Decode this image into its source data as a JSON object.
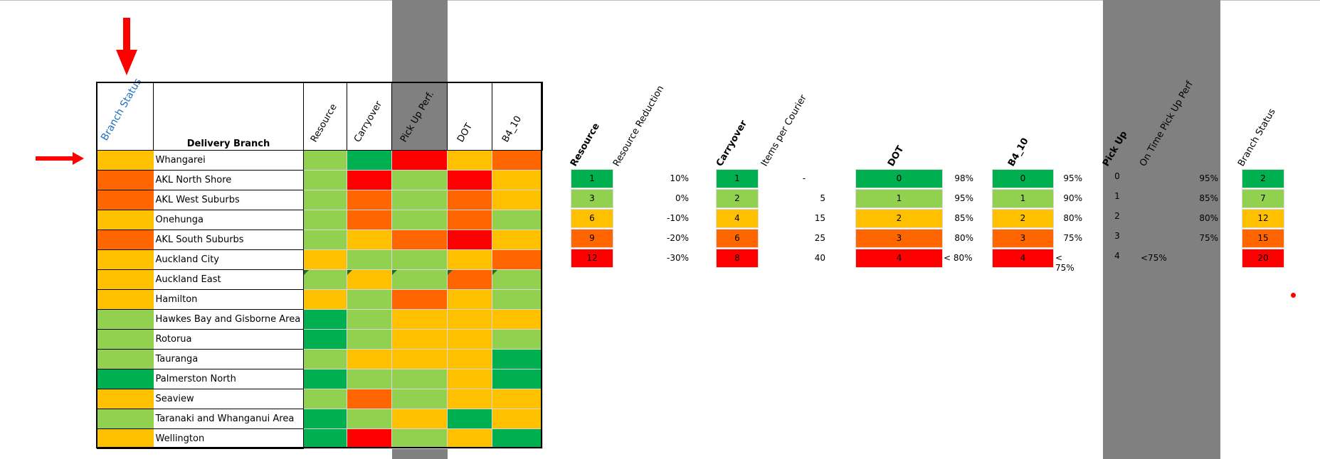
{
  "colors": {
    "dark_green": "#00b050",
    "light_green": "#92d050",
    "amber": "#ffc000",
    "orange": "#ff6600",
    "red": "#ff0000",
    "band_gray": "#808080",
    "link_blue": "#1f6fc4"
  },
  "main_table": {
    "headers": {
      "branch_status": "Branch Status",
      "delivery_branch": "Delivery Branch",
      "resource": "Resource",
      "carryover": "Carryover",
      "pickup": "Pick Up Perf.",
      "dot": "DOT",
      "b4_10": "B4_10"
    },
    "rows": [
      {
        "name": "Whangarei",
        "status": "amber",
        "resource": "light_green",
        "carryover": "dark_green",
        "pickup": "red",
        "dot": "amber",
        "b4": "orange"
      },
      {
        "name": "AKL North Shore",
        "status": "orange",
        "resource": "light_green",
        "carryover": "red",
        "pickup": "light_green",
        "dot": "red",
        "b4": "amber"
      },
      {
        "name": "AKL West Suburbs",
        "status": "orange",
        "resource": "light_green",
        "carryover": "orange",
        "pickup": "light_green",
        "dot": "orange",
        "b4": "amber"
      },
      {
        "name": "Onehunga",
        "status": "amber",
        "resource": "light_green",
        "carryover": "orange",
        "pickup": "light_green",
        "dot": "orange",
        "b4": "light_green"
      },
      {
        "name": "AKL South Suburbs",
        "status": "orange",
        "resource": "light_green",
        "carryover": "amber",
        "pickup": "orange",
        "dot": "red",
        "b4": "amber"
      },
      {
        "name": "Auckland City",
        "status": "amber",
        "resource": "amber",
        "carryover": "light_green",
        "pickup": "light_green",
        "dot": "amber",
        "b4": "orange"
      },
      {
        "name": "Auckland East",
        "status": "amber",
        "resource": "light_green",
        "carryover": "amber",
        "pickup": "light_green",
        "dot": "orange",
        "b4": "light_green"
      },
      {
        "name": "Hamilton",
        "status": "amber",
        "resource": "amber",
        "carryover": "light_green",
        "pickup": "orange",
        "dot": "amber",
        "b4": "light_green"
      },
      {
        "name": "Hawkes Bay and Gisborne Area",
        "status": "light_green",
        "resource": "dark_green",
        "carryover": "light_green",
        "pickup": "amber",
        "dot": "amber",
        "b4": "amber"
      },
      {
        "name": "Rotorua",
        "status": "light_green",
        "resource": "dark_green",
        "carryover": "light_green",
        "pickup": "amber",
        "dot": "amber",
        "b4": "light_green"
      },
      {
        "name": "Tauranga",
        "status": "light_green",
        "resource": "light_green",
        "carryover": "amber",
        "pickup": "amber",
        "dot": "amber",
        "b4": "dark_green"
      },
      {
        "name": "Palmerston North",
        "status": "dark_green",
        "resource": "dark_green",
        "carryover": "light_green",
        "pickup": "light_green",
        "dot": "amber",
        "b4": "dark_green"
      },
      {
        "name": "Seaview",
        "status": "amber",
        "resource": "light_green",
        "carryover": "orange",
        "pickup": "light_green",
        "dot": "amber",
        "b4": "amber"
      },
      {
        "name": "Taranaki and Whanganui Area",
        "status": "light_green",
        "resource": "dark_green",
        "carryover": "light_green",
        "pickup": "amber",
        "dot": "dark_green",
        "b4": "amber"
      },
      {
        "name": "Wellington",
        "status": "amber",
        "resource": "dark_green",
        "carryover": "red",
        "pickup": "light_green",
        "dot": "amber",
        "b4": "dark_green"
      }
    ]
  },
  "legend": {
    "resource": {
      "header": "Resource",
      "sub_header": "Resource Reduction",
      "cells": [
        "1",
        "3",
        "6",
        "9",
        "12"
      ],
      "values": [
        "10%",
        "0%",
        "-10%",
        "-20%",
        "-30%"
      ]
    },
    "carryover": {
      "header": "Carryover",
      "sub_header": "Items per Courier",
      "cells": [
        "1",
        "2",
        "4",
        "6",
        "8"
      ],
      "values": [
        "-",
        "5",
        "15",
        "25",
        "40"
      ]
    },
    "dot": {
      "header": "DOT",
      "cells": [
        "0",
        "1",
        "2",
        "3",
        "4"
      ],
      "values": [
        "98%",
        "95%",
        "85%",
        "80%",
        "< 80%"
      ]
    },
    "b4_10": {
      "header": "B4_10",
      "cells": [
        "0",
        "1",
        "2",
        "3",
        "4"
      ],
      "values": [
        "95%",
        "90%",
        "80%",
        "75%",
        "< 75%"
      ]
    },
    "pickup": {
      "header": "Pick Up",
      "sub_header": "On Time Pick Up Perf",
      "cells": [
        "0",
        "1",
        "2",
        "3",
        "4"
      ],
      "values": [
        "95%",
        "85%",
        "80%",
        "75%",
        "<75%"
      ]
    },
    "branch_status": {
      "header": "Branch Status",
      "cells": [
        "2",
        "7",
        "12",
        "15",
        "20"
      ]
    }
  }
}
